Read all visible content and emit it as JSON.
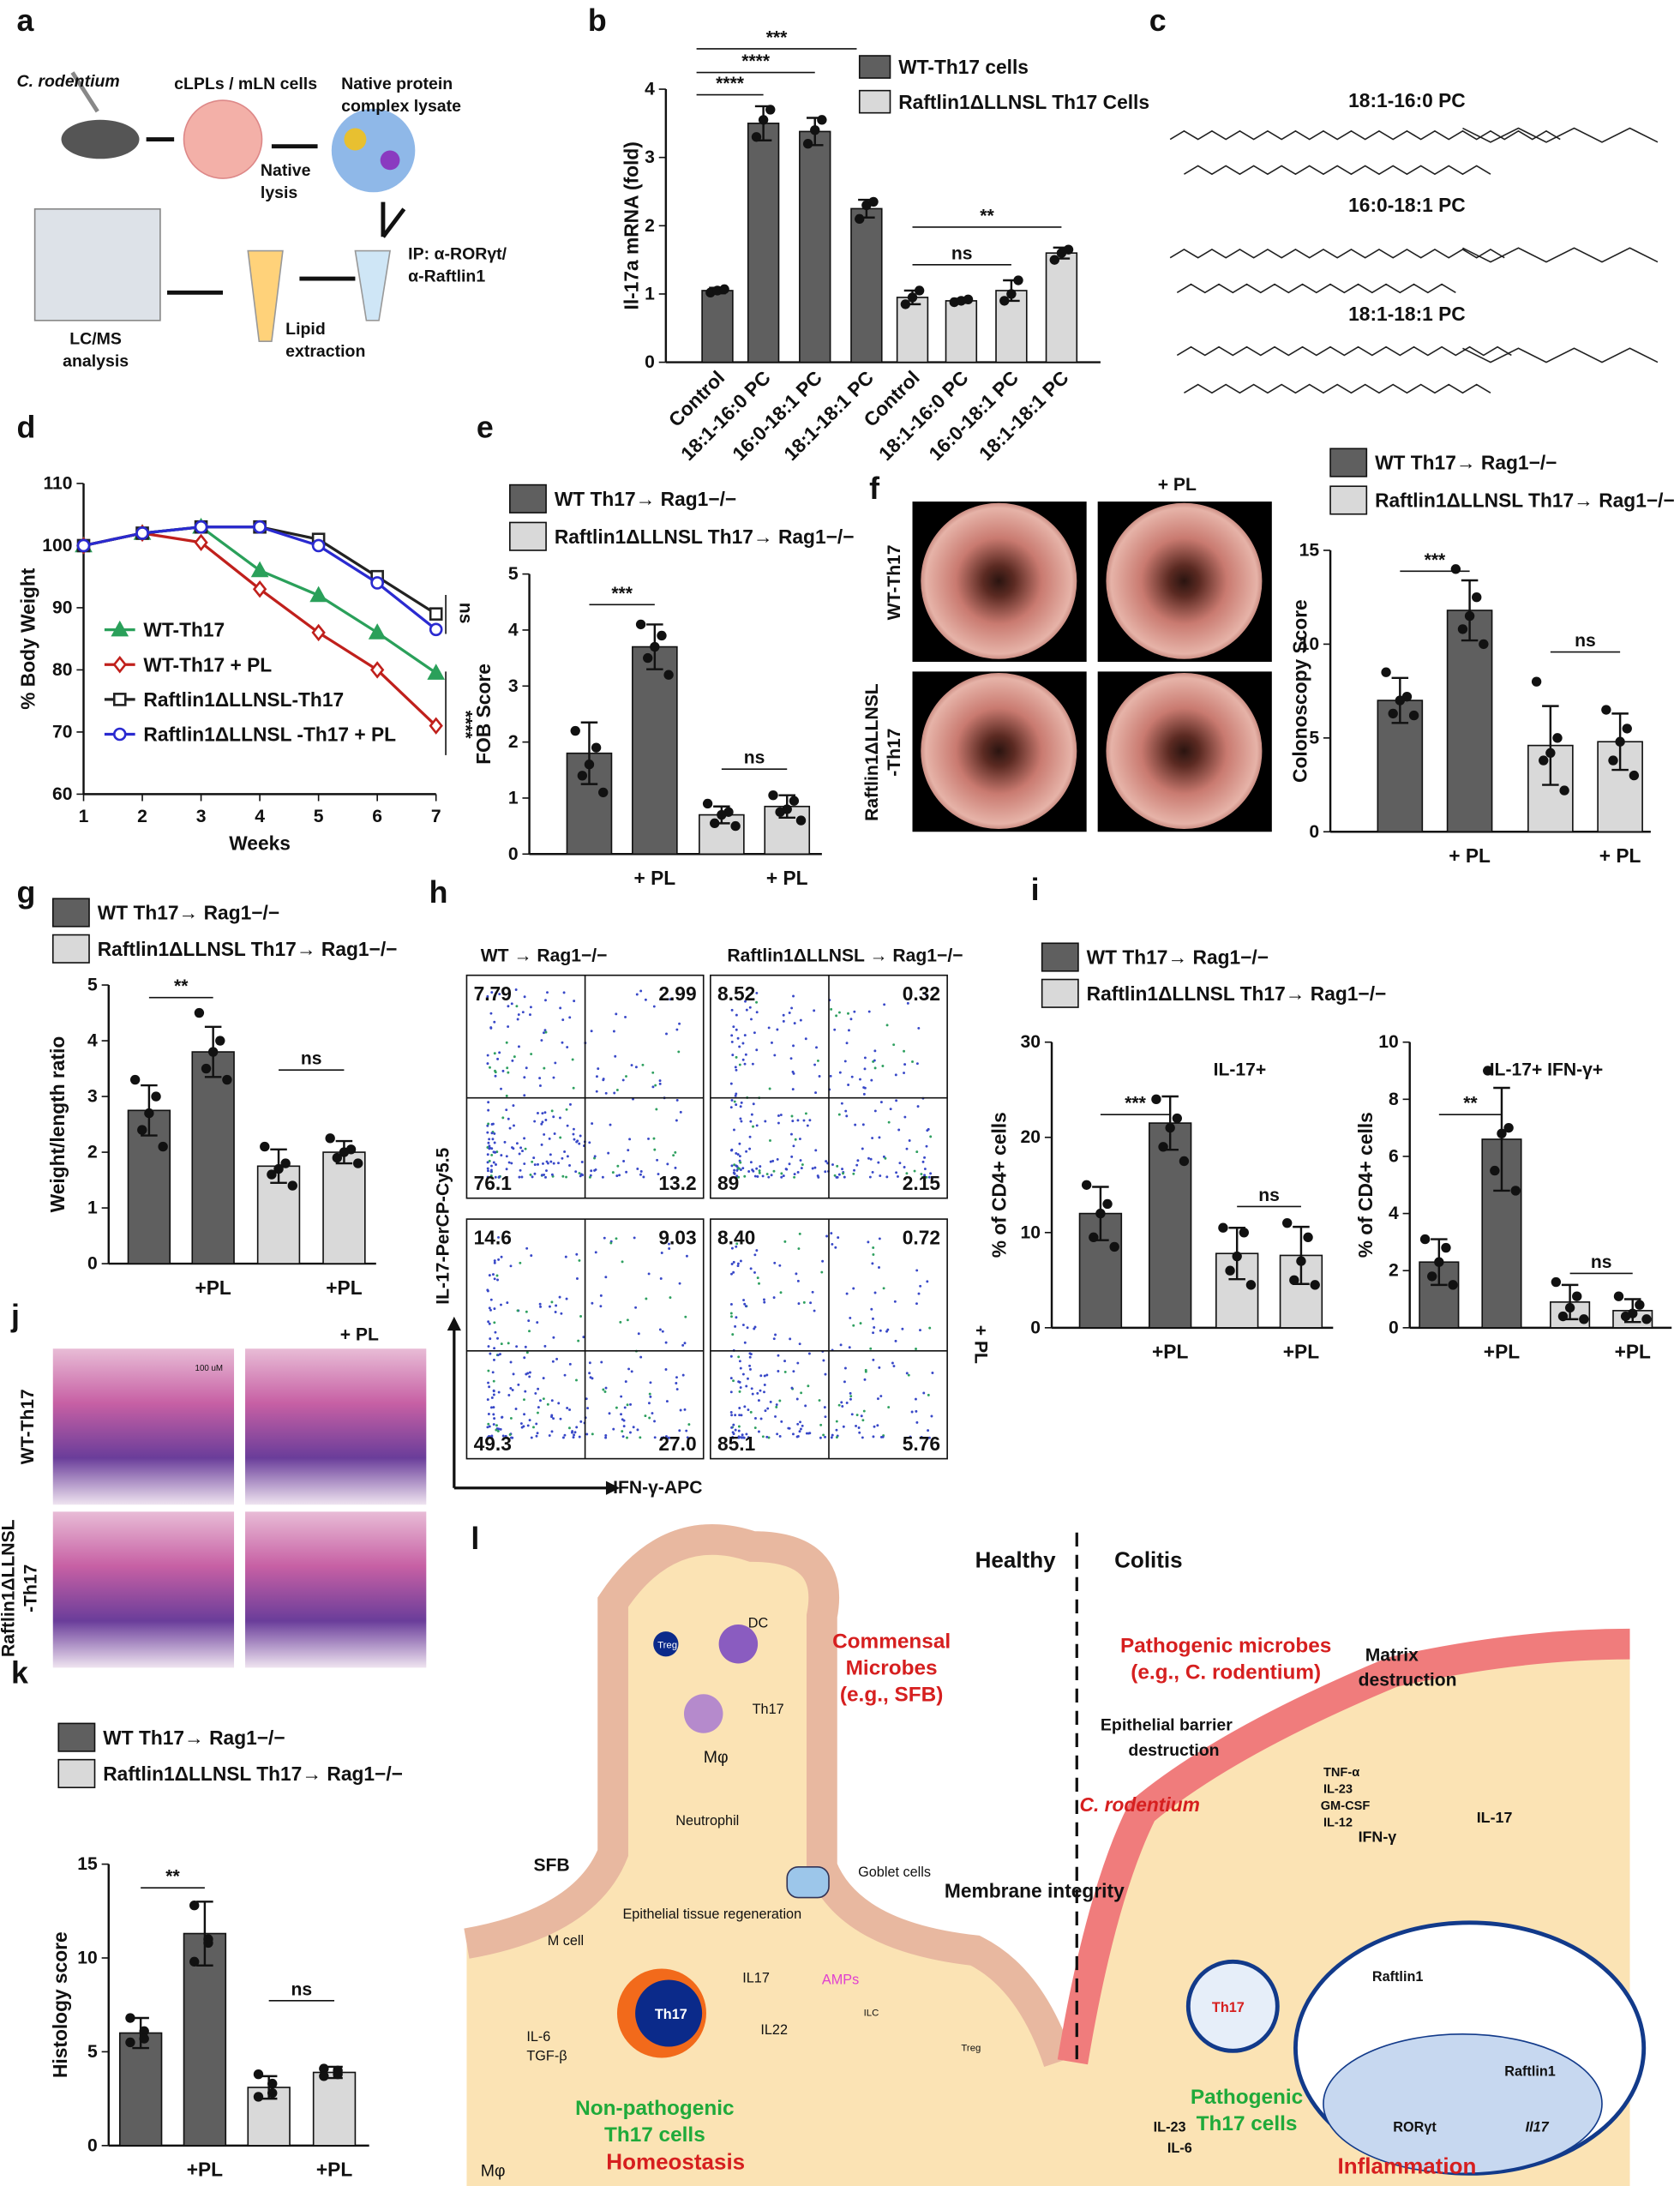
{
  "panel_labels": [
    "a",
    "b",
    "c",
    "d",
    "e",
    "f",
    "g",
    "h",
    "i",
    "j",
    "k",
    "l"
  ],
  "panel_a": {
    "labels": [
      "C. rodentium",
      "cLPLs / mLN cells",
      "Native protein",
      "complex lysate",
      "Native",
      "lysis",
      "IP: α-RORγt/",
      "α-Raftlin1",
      "Lipid",
      "extraction",
      "LC/MS",
      "analysis"
    ]
  },
  "panel_c": {
    "labels": [
      "18:1-16:0 PC",
      "16:0-18:1 PC",
      "18:1-18:1 PC"
    ]
  },
  "panel_f": {
    "labels": [
      "+ PL",
      "WT-Th17",
      "Raftlin1ΔLLNSL",
      "-Th17"
    ]
  },
  "panel_h": {
    "col_titles": [
      "WT → Rag1−/−",
      "Raftlin1ΔLLNSL → Rag1−/−"
    ],
    "row_label": "+ PL",
    "y_axis": "IL-17-PerCP-Cy5.5",
    "x_axis": "IFN-γ-APC",
    "plots": [
      [
        "7.79",
        "2.99",
        "76.1",
        "13.2"
      ],
      [
        "8.52",
        "0.32",
        "89",
        "2.15"
      ],
      [
        "14.6",
        "9.03",
        "49.3",
        "27.0"
      ],
      [
        "8.40",
        "0.72",
        "85.1",
        "5.76"
      ]
    ]
  },
  "panel_j": {
    "labels": [
      "+ PL",
      "WT-Th17",
      "Raftlin1ΔLLNSL",
      "-Th17",
      "100 uM"
    ]
  },
  "panel_l": {
    "labels": [
      "Healthy",
      "Colitis",
      "Commensal",
      "Microbes",
      "(e.g., SFB)",
      "DC",
      "Treg",
      "Th17",
      "Mφ",
      "Neutrophil",
      "SFB",
      "M cell",
      "Epithelial tissue regeneration",
      "Goblet cells",
      "Membrane integrity",
      "IL17",
      "IL22",
      "AMPs",
      "ILC",
      "IL-6",
      "TGF-β",
      "Non-pathogenic",
      "Th17 cells",
      "Homeostasis",
      "Pathogenic microbes",
      "(e.g., C. rodentium)",
      "Matrix",
      "destruction",
      "Epithelial barrier",
      "destruction",
      "C. rodentium",
      "TNF-α",
      "IL-23",
      "GM-CSF",
      "IL-12",
      "IFN-γ",
      "IL-17",
      "Raftlin1",
      "Raftlin1",
      "RORγt",
      "Il17",
      "IL-23",
      "IL-6",
      "Pathogenic",
      "Th17 cells",
      "Inflammation",
      "Th17",
      "Mφ",
      "Treg"
    ]
  },
  "chart_data": [
    {
      "type": "bar",
      "ylabel": "Il-17a mRNA (fold)",
      "categories": [
        "Control",
        "18:1-16:0 PC",
        "16:0-18:1 PC",
        "18:1-18:1 PC",
        "Control",
        "18:1-16:0 PC",
        "16:0-18:1 PC",
        "18:1-18:1 PC"
      ],
      "ylim": [
        0,
        4
      ],
      "yticks": [
        0,
        1,
        2,
        3,
        4
      ],
      "series": [
        {
          "name": "WT-Th17 cells",
          "color": "#5f5f5f",
          "values": [
            1.05,
            3.5,
            3.38,
            2.25,
            null,
            null,
            null,
            null
          ],
          "errors": [
            0.04,
            0.25,
            0.2,
            0.13,
            null,
            null,
            null,
            null
          ],
          "points": [
            [
              1.02,
              1.05,
              1.07
            ],
            [
              3.3,
              3.55,
              3.7
            ],
            [
              3.2,
              3.4,
              3.55
            ],
            [
              2.1,
              2.3,
              2.35
            ],
            null,
            null,
            null,
            null
          ]
        },
        {
          "name": "Raftlin1ΔLLNSL Th17 Cells",
          "color": "#d9d9d9",
          "values": [
            null,
            null,
            null,
            null,
            0.95,
            0.9,
            1.05,
            1.6
          ],
          "errors": [
            null,
            null,
            null,
            null,
            0.1,
            0.03,
            0.15,
            0.08
          ],
          "points": [
            null,
            null,
            null,
            null,
            [
              0.85,
              0.95,
              1.05
            ],
            [
              0.88,
              0.9,
              0.92
            ],
            [
              0.9,
              1.0,
              1.2
            ],
            [
              1.5,
              1.6,
              1.65
            ]
          ]
        }
      ],
      "annotations": [
        "***",
        "****",
        "****",
        "**",
        "ns"
      ]
    },
    {
      "type": "line",
      "ylabel": "% Body Weight",
      "xlabel": "Weeks",
      "x": [
        1,
        2,
        3,
        4,
        5,
        6,
        7
      ],
      "xlim": [
        1,
        7
      ],
      "xticks": [
        1,
        2,
        3,
        4,
        5,
        6,
        7
      ],
      "ylim": [
        60,
        110
      ],
      "yticks": [
        60,
        70,
        80,
        90,
        100,
        110
      ],
      "series": [
        {
          "name": "WT-Th17",
          "color": "#2aa05a",
          "marker": "triangle",
          "values": [
            100,
            102,
            103,
            96,
            92,
            86,
            79.5
          ]
        },
        {
          "name": "WT-Th17 + PL",
          "color": "#c0201c",
          "marker": "diamond",
          "values": [
            100,
            102,
            100.5,
            93,
            86,
            80,
            71
          ]
        },
        {
          "name": "Raftlin1ΔLLNSL-Th17",
          "color": "#222222",
          "marker": "square",
          "values": [
            100,
            102,
            103,
            103,
            101,
            95,
            89
          ]
        },
        {
          "name": "Raftlin1ΔLLNSL -Th17 + PL",
          "color": "#2a2ad0",
          "marker": "circle",
          "values": [
            100,
            102,
            103,
            103,
            100,
            94,
            86.5
          ]
        }
      ],
      "annotations": [
        "ns",
        "****"
      ]
    },
    {
      "type": "bar",
      "ylabel": "FOB Score",
      "categories": [
        null,
        "+ PL",
        null,
        "+ PL"
      ],
      "ylim": [
        0,
        5
      ],
      "yticks": [
        0,
        1,
        2,
        3,
        4,
        5
      ],
      "series": [
        {
          "name": "WT Th17→ Rag1−/−",
          "color": "#5f5f5f",
          "values": [
            1.8,
            3.7,
            null,
            null
          ],
          "errors": [
            0.55,
            0.4,
            null,
            null
          ],
          "points": [
            [
              2.2,
              1.9,
              1.6,
              1.4,
              1.1
            ],
            [
              4.1,
              3.9,
              3.7,
              3.5,
              3.2
            ],
            null,
            null
          ]
        },
        {
          "name": "Raftlin1ΔLLNSL Th17→ Rag1−/−",
          "color": "#d9d9d9",
          "values": [
            null,
            null,
            0.7,
            0.85
          ],
          "errors": [
            null,
            null,
            0.15,
            0.2
          ],
          "points": [
            null,
            null,
            [
              0.9,
              0.75,
              0.7,
              0.55,
              0.5
            ],
            [
              1.05,
              0.95,
              0.8,
              0.75,
              0.6
            ]
          ]
        }
      ],
      "annotations": [
        "***",
        "ns"
      ]
    },
    {
      "type": "bar",
      "ylabel": "Colonoscopy Score",
      "categories": [
        null,
        "+ PL",
        null,
        "+ PL"
      ],
      "ylim": [
        0,
        15
      ],
      "yticks": [
        0,
        5,
        10,
        15
      ],
      "series": [
        {
          "name": "WT Th17→ Rag1−/−",
          "color": "#5f5f5f",
          "values": [
            7,
            11.8,
            null,
            null
          ],
          "errors": [
            1.2,
            1.6,
            null,
            null
          ],
          "points": [
            [
              8.5,
              7.2,
              7,
              6.3,
              6.2
            ],
            [
              14,
              12.5,
              11.5,
              10.8,
              10
            ],
            null,
            null
          ]
        },
        {
          "name": "Raftlin1ΔLLNSL Th17→ Rag1−/−",
          "color": "#d9d9d9",
          "values": [
            null,
            null,
            4.6,
            4.8
          ],
          "errors": [
            null,
            null,
            2.1,
            1.5
          ],
          "points": [
            null,
            null,
            [
              8,
              5,
              4.2,
              3.8,
              2.2
            ],
            [
              6.5,
              5.5,
              4.8,
              3.8,
              3
            ]
          ]
        }
      ],
      "annotations": [
        "***",
        "ns"
      ]
    },
    {
      "type": "bar",
      "ylabel": "Weight/length ratio",
      "categories": [
        null,
        "+PL",
        null,
        "+PL"
      ],
      "ylim": [
        0,
        5
      ],
      "yticks": [
        0,
        1,
        2,
        3,
        4,
        5
      ],
      "series": [
        {
          "name": "WT Th17→ Rag1−/−",
          "color": "#5f5f5f",
          "values": [
            2.75,
            3.8,
            null,
            null
          ],
          "errors": [
            0.45,
            0.45,
            null,
            null
          ],
          "points": [
            [
              3.3,
              3.0,
              2.7,
              2.4,
              2.1
            ],
            [
              4.5,
              4.0,
              3.8,
              3.5,
              3.3
            ],
            null,
            null
          ]
        },
        {
          "name": "Raftlin1ΔLLNSL Th17→ Rag1−/−",
          "color": "#d9d9d9",
          "values": [
            null,
            null,
            1.75,
            2.0
          ],
          "errors": [
            null,
            null,
            0.3,
            0.2
          ],
          "points": [
            null,
            null,
            [
              2.1,
              1.8,
              1.7,
              1.6,
              1.4
            ],
            [
              2.25,
              2.05,
              2.0,
              1.9,
              1.8
            ]
          ]
        }
      ],
      "annotations": [
        "**",
        "ns"
      ]
    },
    {
      "type": "bar",
      "title": "IL-17+",
      "ylabel": "% of CD4+ cells",
      "categories": [
        null,
        "+PL",
        null,
        "+PL"
      ],
      "ylim": [
        0,
        30
      ],
      "yticks": [
        0,
        10,
        20,
        30
      ],
      "series": [
        {
          "name": "WT Th17→ Rag1−/−",
          "color": "#5f5f5f",
          "values": [
            12,
            21.5,
            null,
            null
          ],
          "errors": [
            2.8,
            2.8,
            null,
            null
          ],
          "points": [
            [
              15,
              13,
              12,
              9.5,
              8.5
            ],
            [
              24,
              22,
              21,
              19,
              17.5
            ],
            null,
            null
          ]
        },
        {
          "name": "Raftlin1ΔLLNSL Th17→ Rag1−/−",
          "color": "#d9d9d9",
          "values": [
            null,
            null,
            7.8,
            7.6
          ],
          "errors": [
            null,
            null,
            2.7,
            3
          ],
          "points": [
            null,
            null,
            [
              10.5,
              10,
              7.5,
              6,
              4.5
            ],
            [
              11,
              9.5,
              7,
              5,
              4.5
            ]
          ]
        }
      ],
      "annotations": [
        "***",
        "ns"
      ]
    },
    {
      "type": "bar",
      "title": "IL-17+ IFN-γ+",
      "ylabel": "% of CD4+ cells",
      "categories": [
        null,
        "+PL",
        null,
        "+PL"
      ],
      "ylim": [
        0,
        10
      ],
      "yticks": [
        0,
        2,
        4,
        6,
        8,
        10
      ],
      "series": [
        {
          "color": "#5f5f5f",
          "values": [
            2.3,
            6.6,
            null,
            null
          ],
          "errors": [
            0.8,
            1.8,
            null,
            null
          ],
          "points": [
            [
              3.1,
              2.8,
              2.3,
              1.8,
              1.5
            ],
            [
              9,
              7,
              6.8,
              5.5,
              4.8
            ],
            null,
            null
          ]
        },
        {
          "color": "#d9d9d9",
          "values": [
            null,
            null,
            0.9,
            0.6
          ],
          "errors": [
            null,
            null,
            0.6,
            0.4
          ],
          "points": [
            null,
            null,
            [
              1.6,
              1.1,
              0.7,
              0.4,
              0.3
            ],
            [
              1.1,
              0.8,
              0.5,
              0.4,
              0.3
            ]
          ]
        }
      ],
      "annotations": [
        "**",
        "ns"
      ]
    },
    {
      "type": "bar",
      "ylabel": "Histology score",
      "categories": [
        null,
        "+PL",
        null,
        "+PL"
      ],
      "ylim": [
        0,
        15
      ],
      "yticks": [
        0,
        5,
        10,
        15
      ],
      "series": [
        {
          "name": "WT Th17→ Rag1−/−",
          "color": "#5f5f5f",
          "values": [
            6,
            11.3,
            null,
            null
          ],
          "errors": [
            0.8,
            1.7,
            null,
            null
          ],
          "points": [
            [
              6.8,
              6.1,
              5.7,
              5.5
            ],
            [
              12.8,
              11,
              10.8,
              9.8
            ],
            null,
            null
          ]
        },
        {
          "name": "Raftlin1ΔLLNSL Th17→ Rag1−/−",
          "color": "#d9d9d9",
          "values": [
            null,
            null,
            3.1,
            3.9
          ],
          "errors": [
            null,
            null,
            0.6,
            0.3
          ],
          "points": [
            null,
            null,
            [
              3.8,
              3.3,
              2.8,
              2.6
            ],
            [
              4.1,
              4.0,
              3.8,
              3.7
            ]
          ]
        }
      ],
      "annotations": [
        "**",
        "ns"
      ]
    }
  ]
}
